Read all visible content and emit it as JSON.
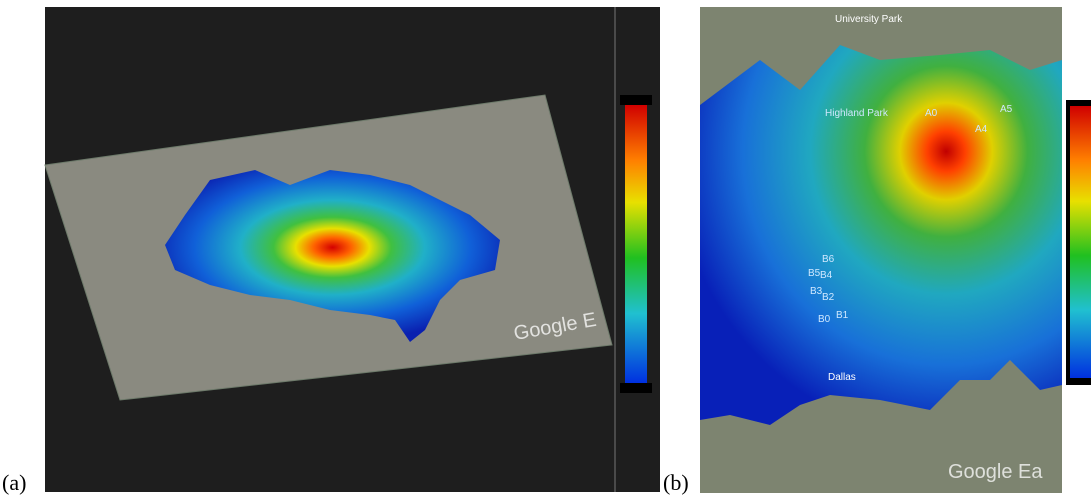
{
  "panels": [
    {
      "label": "(a)",
      "map_labels": [
        "Google E"
      ]
    },
    {
      "label": "(b)",
      "map_labels": [
        "University Park",
        "Highland Park",
        "A0",
        "A4",
        "A5",
        "B6",
        "B5",
        "B4",
        "B3",
        "B2",
        "B1",
        "B0",
        "Dallas",
        "Google Ea"
      ]
    }
  ]
}
